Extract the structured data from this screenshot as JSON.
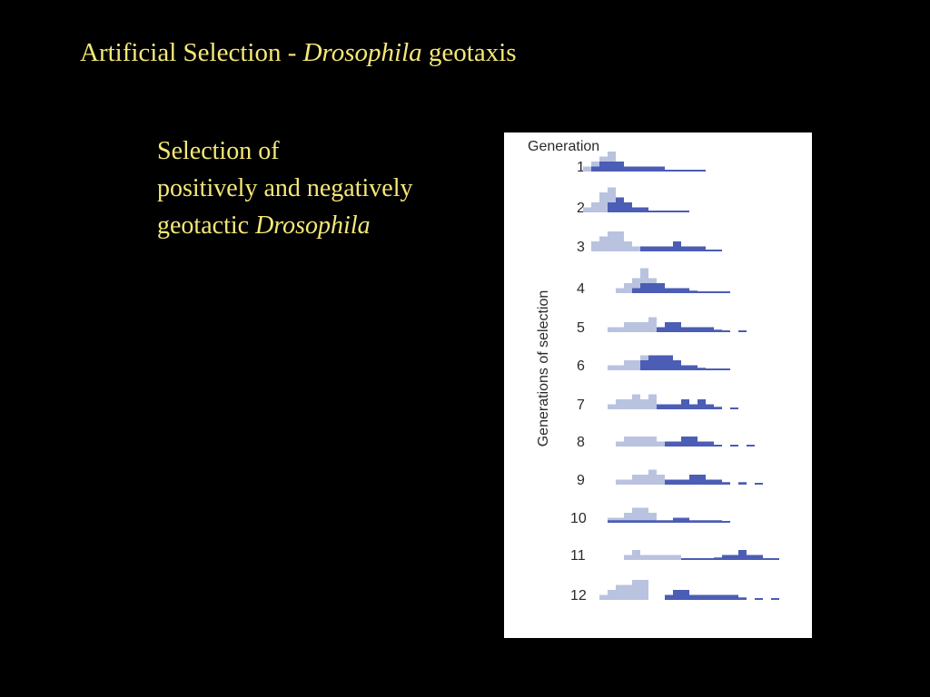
{
  "slide": {
    "title_pre": "Artificial Selection - ",
    "title_italic": "Drosophila",
    "title_post": " geotaxis",
    "body_line1": "Selection of",
    "body_line2": "positively and negatively",
    "body_line3_pre": "geotactic ",
    "body_line3_italic": "Drosophila"
  },
  "colors": {
    "light_series": "#b9c3e0",
    "dark_series": "#4b5db4",
    "figure_bg": "#ffffff"
  },
  "chart_data": {
    "type": "histogram",
    "column_header": "Generation",
    "ylabel": "Generations of selection",
    "row_labels": [
      "1",
      "2",
      "3",
      "4",
      "5",
      "6",
      "7",
      "8",
      "9",
      "10",
      "11",
      "12"
    ],
    "series": [
      {
        "color": "#b9c3e0"
      },
      {
        "color": "#4b5db4"
      }
    ],
    "rows": [
      {
        "gen": "1",
        "light": [
          [
            87,
            1
          ],
          [
            96,
            2
          ],
          [
            105,
            3
          ],
          [
            114,
            4
          ],
          [
            123,
            2
          ],
          [
            132,
            1
          ]
        ],
        "dark": [
          [
            96,
            1
          ],
          [
            105,
            2
          ],
          [
            114,
            2
          ],
          [
            123,
            2
          ],
          [
            132,
            1
          ],
          [
            141,
            1
          ],
          [
            150,
            1
          ],
          [
            159,
            1
          ],
          [
            168,
            1
          ],
          [
            177,
            0.3
          ],
          [
            186,
            0.3
          ],
          [
            195,
            0.3
          ],
          [
            204,
            0.3
          ],
          [
            213,
            0.3
          ]
        ]
      },
      {
        "gen": "2",
        "light": [
          [
            87,
            1
          ],
          [
            96,
            2
          ],
          [
            105,
            4
          ],
          [
            114,
            5
          ],
          [
            123,
            3
          ],
          [
            132,
            1
          ]
        ],
        "dark": [
          [
            114,
            2
          ],
          [
            123,
            3
          ],
          [
            132,
            2
          ],
          [
            141,
            1
          ],
          [
            150,
            1
          ],
          [
            159,
            0.3
          ],
          [
            168,
            0.3
          ],
          [
            177,
            0.3
          ],
          [
            186,
            0.3
          ],
          [
            195,
            0.3
          ]
        ]
      },
      {
        "gen": "3",
        "light": [
          [
            96,
            2
          ],
          [
            105,
            3
          ],
          [
            114,
            4
          ],
          [
            123,
            4
          ],
          [
            132,
            2
          ],
          [
            141,
            1
          ]
        ],
        "dark": [
          [
            150,
            1
          ],
          [
            159,
            1
          ],
          [
            168,
            1
          ],
          [
            177,
            1
          ],
          [
            186,
            2
          ],
          [
            195,
            1
          ],
          [
            204,
            1
          ],
          [
            213,
            1
          ],
          [
            222,
            0.3
          ],
          [
            231,
            0.3
          ]
        ]
      },
      {
        "gen": "4",
        "light": [
          [
            123,
            1
          ],
          [
            132,
            2
          ],
          [
            141,
            3
          ],
          [
            150,
            5
          ],
          [
            159,
            3
          ],
          [
            168,
            1
          ]
        ],
        "dark": [
          [
            141,
            1
          ],
          [
            150,
            2
          ],
          [
            159,
            2
          ],
          [
            168,
            2
          ],
          [
            177,
            1
          ],
          [
            186,
            1
          ],
          [
            195,
            1
          ],
          [
            204,
            0.5
          ],
          [
            213,
            0.3
          ],
          [
            222,
            0.3
          ],
          [
            231,
            0.3
          ],
          [
            240,
            0.3
          ]
        ]
      },
      {
        "gen": "5",
        "light": [
          [
            114,
            1
          ],
          [
            123,
            1
          ],
          [
            132,
            2
          ],
          [
            141,
            2
          ],
          [
            150,
            2
          ],
          [
            159,
            3
          ]
        ],
        "dark": [
          [
            168,
            1
          ],
          [
            177,
            2
          ],
          [
            186,
            2
          ],
          [
            195,
            1
          ],
          [
            204,
            1
          ],
          [
            213,
            1
          ],
          [
            222,
            1
          ],
          [
            231,
            0.5
          ],
          [
            240,
            0.3
          ],
          [
            258,
            0.3
          ]
        ]
      },
      {
        "gen": "6",
        "light": [
          [
            114,
            1
          ],
          [
            123,
            1
          ],
          [
            132,
            2
          ],
          [
            141,
            2
          ],
          [
            150,
            3
          ],
          [
            159,
            3
          ]
        ],
        "dark": [
          [
            150,
            2
          ],
          [
            159,
            3
          ],
          [
            168,
            3
          ],
          [
            177,
            3
          ],
          [
            186,
            2
          ],
          [
            195,
            1
          ],
          [
            204,
            1
          ],
          [
            213,
            0.5
          ],
          [
            222,
            0.3
          ],
          [
            231,
            0.3
          ],
          [
            240,
            0.3
          ]
        ]
      },
      {
        "gen": "7",
        "light": [
          [
            114,
            1
          ],
          [
            123,
            2
          ],
          [
            132,
            2
          ],
          [
            141,
            3
          ],
          [
            150,
            2
          ],
          [
            159,
            3
          ]
        ],
        "dark": [
          [
            168,
            1
          ],
          [
            177,
            1
          ],
          [
            186,
            1
          ],
          [
            195,
            2
          ],
          [
            204,
            1
          ],
          [
            213,
            2
          ],
          [
            222,
            1
          ],
          [
            231,
            0.5
          ],
          [
            249,
            0.3
          ]
        ]
      },
      {
        "gen": "8",
        "light": [
          [
            123,
            1
          ],
          [
            132,
            2
          ],
          [
            141,
            2
          ],
          [
            150,
            2
          ],
          [
            159,
            2
          ],
          [
            168,
            1
          ]
        ],
        "dark": [
          [
            177,
            1
          ],
          [
            186,
            1
          ],
          [
            195,
            2
          ],
          [
            204,
            2
          ],
          [
            213,
            1
          ],
          [
            222,
            1
          ],
          [
            231,
            0.3
          ],
          [
            249,
            0.3
          ],
          [
            267,
            0.3
          ]
        ]
      },
      {
        "gen": "9",
        "light": [
          [
            123,
            1
          ],
          [
            132,
            1
          ],
          [
            141,
            2
          ],
          [
            150,
            2
          ],
          [
            159,
            3
          ],
          [
            168,
            2
          ]
        ],
        "dark": [
          [
            177,
            1
          ],
          [
            186,
            1
          ],
          [
            195,
            1
          ],
          [
            204,
            2
          ],
          [
            213,
            2
          ],
          [
            222,
            1
          ],
          [
            231,
            1
          ],
          [
            240,
            0.5
          ],
          [
            258,
            0.5
          ],
          [
            276,
            0.3
          ]
        ]
      },
      {
        "gen": "10",
        "light": [
          [
            114,
            1
          ],
          [
            123,
            1
          ],
          [
            132,
            2
          ],
          [
            141,
            3
          ],
          [
            150,
            3
          ],
          [
            159,
            2
          ]
        ],
        "dark": [
          [
            114,
            0.5
          ],
          [
            123,
            0.5
          ],
          [
            132,
            0.5
          ],
          [
            141,
            0.5
          ],
          [
            150,
            0.5
          ],
          [
            159,
            0.5
          ],
          [
            168,
            0.5
          ],
          [
            177,
            0.5
          ],
          [
            186,
            1
          ],
          [
            195,
            1
          ],
          [
            204,
            0.5
          ],
          [
            213,
            0.5
          ],
          [
            222,
            0.5
          ],
          [
            231,
            0.5
          ],
          [
            240,
            0.3
          ]
        ]
      },
      {
        "gen": "11",
        "light": [
          [
            132,
            1
          ],
          [
            141,
            2
          ],
          [
            150,
            1
          ],
          [
            159,
            1
          ],
          [
            168,
            1
          ],
          [
            177,
            1
          ],
          [
            186,
            1
          ]
        ],
        "dark": [
          [
            195,
            0.3
          ],
          [
            204,
            0.3
          ],
          [
            213,
            0.3
          ],
          [
            222,
            0.3
          ],
          [
            231,
            0.5
          ],
          [
            240,
            1
          ],
          [
            249,
            1
          ],
          [
            258,
            2
          ],
          [
            267,
            1
          ],
          [
            276,
            1
          ],
          [
            285,
            0.3
          ],
          [
            294,
            0.3
          ]
        ]
      },
      {
        "gen": "12",
        "light": [
          [
            105,
            1
          ],
          [
            114,
            2
          ],
          [
            123,
            3
          ],
          [
            132,
            3
          ],
          [
            141,
            4
          ],
          [
            150,
            4
          ]
        ],
        "dark": [
          [
            177,
            1
          ],
          [
            186,
            2
          ],
          [
            195,
            2
          ],
          [
            204,
            1
          ],
          [
            213,
            1
          ],
          [
            222,
            1
          ],
          [
            231,
            1
          ],
          [
            240,
            1
          ],
          [
            249,
            1
          ],
          [
            258,
            0.5
          ],
          [
            276,
            0.3
          ],
          [
            294,
            0.3
          ]
        ]
      }
    ]
  }
}
